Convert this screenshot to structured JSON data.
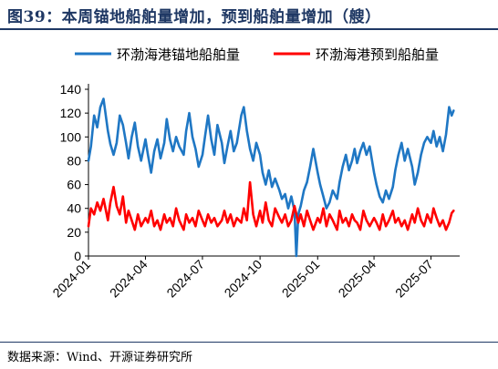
{
  "header": {
    "title": "图39：本周锚地船舶量增加，预到船舶量增加（艘）"
  },
  "footer": {
    "source": "数据来源：Wind、开源证券研究所"
  },
  "chart_data": {
    "type": "line",
    "title": "",
    "xlabel": "",
    "ylabel": "",
    "ylim": [
      0,
      140
    ],
    "yticks": [
      0,
      20,
      40,
      60,
      80,
      100,
      120,
      140
    ],
    "xlim": [
      "2024-01-01",
      "2025-08-10"
    ],
    "xticks": [
      "2024-01",
      "2024-04",
      "2024-07",
      "2024-10",
      "2025-01",
      "2025-04",
      "2025-07"
    ],
    "grid": false,
    "legend_position": "top",
    "series": [
      {
        "name": "环渤海港锚地船舶量",
        "color": "#1f77c4",
        "points": [
          [
            "2024-01-01",
            80
          ],
          [
            "2024-01-05",
            92
          ],
          [
            "2024-01-10",
            118
          ],
          [
            "2024-01-15",
            108
          ],
          [
            "2024-01-20",
            125
          ],
          [
            "2024-01-25",
            132
          ],
          [
            "2024-02-01",
            105
          ],
          [
            "2024-02-05",
            94
          ],
          [
            "2024-02-10",
            85
          ],
          [
            "2024-02-15",
            95
          ],
          [
            "2024-02-20",
            118
          ],
          [
            "2024-02-25",
            110
          ],
          [
            "2024-03-01",
            95
          ],
          [
            "2024-03-05",
            82
          ],
          [
            "2024-03-10",
            100
          ],
          [
            "2024-03-15",
            112
          ],
          [
            "2024-03-20",
            92
          ],
          [
            "2024-03-25",
            80
          ],
          [
            "2024-04-01",
            98
          ],
          [
            "2024-04-05",
            85
          ],
          [
            "2024-04-10",
            70
          ],
          [
            "2024-04-15",
            88
          ],
          [
            "2024-04-20",
            98
          ],
          [
            "2024-04-25",
            82
          ],
          [
            "2024-05-01",
            95
          ],
          [
            "2024-05-05",
            115
          ],
          [
            "2024-05-10",
            98
          ],
          [
            "2024-05-15",
            88
          ],
          [
            "2024-05-20",
            100
          ],
          [
            "2024-05-25",
            92
          ],
          [
            "2024-06-01",
            85
          ],
          [
            "2024-06-05",
            105
          ],
          [
            "2024-06-10",
            120
          ],
          [
            "2024-06-15",
            100
          ],
          [
            "2024-06-20",
            90
          ],
          [
            "2024-06-25",
            75
          ],
          [
            "2024-07-01",
            85
          ],
          [
            "2024-07-05",
            100
          ],
          [
            "2024-07-10",
            118
          ],
          [
            "2024-07-15",
            98
          ],
          [
            "2024-07-20",
            85
          ],
          [
            "2024-07-25",
            110
          ],
          [
            "2024-08-01",
            95
          ],
          [
            "2024-08-05",
            78
          ],
          [
            "2024-08-10",
            92
          ],
          [
            "2024-08-15",
            105
          ],
          [
            "2024-08-20",
            88
          ],
          [
            "2024-08-25",
            95
          ],
          [
            "2024-09-01",
            118
          ],
          [
            "2024-09-05",
            125
          ],
          [
            "2024-09-10",
            105
          ],
          [
            "2024-09-15",
            90
          ],
          [
            "2024-09-20",
            80
          ],
          [
            "2024-09-25",
            95
          ],
          [
            "2024-10-01",
            85
          ],
          [
            "2024-10-05",
            70
          ],
          [
            "2024-10-10",
            60
          ],
          [
            "2024-10-15",
            72
          ],
          [
            "2024-10-20",
            58
          ],
          [
            "2024-10-25",
            65
          ],
          [
            "2024-11-01",
            55
          ],
          [
            "2024-11-05",
            48
          ],
          [
            "2024-11-10",
            52
          ],
          [
            "2024-11-15",
            40
          ],
          [
            "2024-11-20",
            50
          ],
          [
            "2024-11-25",
            38
          ],
          [
            "2024-11-28",
            0
          ],
          [
            "2024-12-01",
            35
          ],
          [
            "2024-12-05",
            42
          ],
          [
            "2024-12-10",
            55
          ],
          [
            "2024-12-15",
            62
          ],
          [
            "2024-12-20",
            75
          ],
          [
            "2024-12-25",
            90
          ],
          [
            "2025-01-01",
            70
          ],
          [
            "2025-01-05",
            60
          ],
          [
            "2025-01-10",
            50
          ],
          [
            "2025-01-15",
            40
          ],
          [
            "2025-01-20",
            45
          ],
          [
            "2025-01-25",
            55
          ],
          [
            "2025-02-01",
            48
          ],
          [
            "2025-02-05",
            62
          ],
          [
            "2025-02-10",
            75
          ],
          [
            "2025-02-15",
            85
          ],
          [
            "2025-02-20",
            72
          ],
          [
            "2025-02-25",
            80
          ],
          [
            "2025-03-01",
            90
          ],
          [
            "2025-03-05",
            78
          ],
          [
            "2025-03-10",
            88
          ],
          [
            "2025-03-15",
            95
          ],
          [
            "2025-03-20",
            85
          ],
          [
            "2025-03-25",
            92
          ],
          [
            "2025-04-01",
            70
          ],
          [
            "2025-04-05",
            60
          ],
          [
            "2025-04-10",
            50
          ],
          [
            "2025-04-15",
            45
          ],
          [
            "2025-04-20",
            55
          ],
          [
            "2025-04-25",
            48
          ],
          [
            "2025-05-01",
            58
          ],
          [
            "2025-05-05",
            72
          ],
          [
            "2025-05-10",
            85
          ],
          [
            "2025-05-15",
            95
          ],
          [
            "2025-05-20",
            80
          ],
          [
            "2025-05-25",
            90
          ],
          [
            "2025-06-01",
            75
          ],
          [
            "2025-06-05",
            60
          ],
          [
            "2025-06-10",
            70
          ],
          [
            "2025-06-15",
            85
          ],
          [
            "2025-06-20",
            95
          ],
          [
            "2025-06-25",
            100
          ],
          [
            "2025-07-01",
            95
          ],
          [
            "2025-07-05",
            105
          ],
          [
            "2025-07-10",
            92
          ],
          [
            "2025-07-15",
            100
          ],
          [
            "2025-07-20",
            88
          ],
          [
            "2025-07-25",
            102
          ],
          [
            "2025-07-30",
            125
          ],
          [
            "2025-08-03",
            118
          ],
          [
            "2025-08-06",
            122
          ]
        ]
      },
      {
        "name": "环渤海港预到船舶量",
        "color": "#ff0000",
        "points": [
          [
            "2024-01-01",
            25
          ],
          [
            "2024-01-05",
            40
          ],
          [
            "2024-01-10",
            35
          ],
          [
            "2024-01-15",
            45
          ],
          [
            "2024-01-20",
            38
          ],
          [
            "2024-01-25",
            48
          ],
          [
            "2024-02-01",
            30
          ],
          [
            "2024-02-05",
            45
          ],
          [
            "2024-02-10",
            58
          ],
          [
            "2024-02-15",
            42
          ],
          [
            "2024-02-20",
            35
          ],
          [
            "2024-02-25",
            50
          ],
          [
            "2024-03-01",
            28
          ],
          [
            "2024-03-05",
            38
          ],
          [
            "2024-03-10",
            30
          ],
          [
            "2024-03-15",
            22
          ],
          [
            "2024-03-20",
            35
          ],
          [
            "2024-03-25",
            25
          ],
          [
            "2024-04-01",
            32
          ],
          [
            "2024-04-05",
            28
          ],
          [
            "2024-04-10",
            38
          ],
          [
            "2024-04-15",
            25
          ],
          [
            "2024-04-20",
            30
          ],
          [
            "2024-04-25",
            22
          ],
          [
            "2024-05-01",
            35
          ],
          [
            "2024-05-05",
            28
          ],
          [
            "2024-05-10",
            32
          ],
          [
            "2024-05-15",
            25
          ],
          [
            "2024-05-20",
            40
          ],
          [
            "2024-05-25",
            30
          ],
          [
            "2024-06-01",
            22
          ],
          [
            "2024-06-05",
            35
          ],
          [
            "2024-06-10",
            28
          ],
          [
            "2024-06-15",
            32
          ],
          [
            "2024-06-20",
            25
          ],
          [
            "2024-06-25",
            38
          ],
          [
            "2024-07-01",
            30
          ],
          [
            "2024-07-05",
            25
          ],
          [
            "2024-07-10",
            35
          ],
          [
            "2024-07-15",
            28
          ],
          [
            "2024-07-20",
            32
          ],
          [
            "2024-07-25",
            25
          ],
          [
            "2024-08-01",
            30
          ],
          [
            "2024-08-05",
            38
          ],
          [
            "2024-08-10",
            28
          ],
          [
            "2024-08-15",
            35
          ],
          [
            "2024-08-20",
            25
          ],
          [
            "2024-08-25",
            32
          ],
          [
            "2024-09-01",
            28
          ],
          [
            "2024-09-05",
            40
          ],
          [
            "2024-09-10",
            30
          ],
          [
            "2024-09-15",
            62
          ],
          [
            "2024-09-20",
            35
          ],
          [
            "2024-09-25",
            25
          ],
          [
            "2024-10-01",
            38
          ],
          [
            "2024-10-05",
            28
          ],
          [
            "2024-10-10",
            45
          ],
          [
            "2024-10-15",
            30
          ],
          [
            "2024-10-20",
            25
          ],
          [
            "2024-10-25",
            40
          ],
          [
            "2024-11-01",
            32
          ],
          [
            "2024-11-05",
            28
          ],
          [
            "2024-11-10",
            35
          ],
          [
            "2024-11-15",
            25
          ],
          [
            "2024-11-20",
            30
          ],
          [
            "2024-11-25",
            42
          ],
          [
            "2024-12-01",
            28
          ],
          [
            "2024-12-05",
            35
          ],
          [
            "2024-12-10",
            25
          ],
          [
            "2024-12-15",
            38
          ],
          [
            "2024-12-20",
            30
          ],
          [
            "2024-12-25",
            22
          ],
          [
            "2025-01-01",
            32
          ],
          [
            "2025-01-05",
            28
          ],
          [
            "2025-01-10",
            40
          ],
          [
            "2025-01-15",
            25
          ],
          [
            "2025-01-20",
            35
          ],
          [
            "2025-01-25",
            30
          ],
          [
            "2025-02-01",
            22
          ],
          [
            "2025-02-05",
            38
          ],
          [
            "2025-02-10",
            28
          ],
          [
            "2025-02-15",
            32
          ],
          [
            "2025-02-20",
            25
          ],
          [
            "2025-02-25",
            35
          ],
          [
            "2025-03-01",
            30
          ],
          [
            "2025-03-05",
            28
          ],
          [
            "2025-03-10",
            22
          ],
          [
            "2025-03-15",
            38
          ],
          [
            "2025-03-20",
            30
          ],
          [
            "2025-03-25",
            25
          ],
          [
            "2025-04-01",
            32
          ],
          [
            "2025-04-05",
            28
          ],
          [
            "2025-04-10",
            22
          ],
          [
            "2025-04-15",
            35
          ],
          [
            "2025-04-20",
            25
          ],
          [
            "2025-04-25",
            30
          ],
          [
            "2025-05-01",
            38
          ],
          [
            "2025-05-05",
            28
          ],
          [
            "2025-05-10",
            32
          ],
          [
            "2025-05-15",
            25
          ],
          [
            "2025-05-20",
            30
          ],
          [
            "2025-05-25",
            22
          ],
          [
            "2025-06-01",
            35
          ],
          [
            "2025-06-05",
            28
          ],
          [
            "2025-06-10",
            40
          ],
          [
            "2025-06-15",
            30
          ],
          [
            "2025-06-20",
            25
          ],
          [
            "2025-06-25",
            35
          ],
          [
            "2025-07-01",
            28
          ],
          [
            "2025-07-05",
            40
          ],
          [
            "2025-07-10",
            32
          ],
          [
            "2025-07-15",
            25
          ],
          [
            "2025-07-20",
            30
          ],
          [
            "2025-07-25",
            22
          ],
          [
            "2025-07-30",
            28
          ],
          [
            "2025-08-03",
            36
          ],
          [
            "2025-08-06",
            38
          ]
        ]
      }
    ]
  }
}
